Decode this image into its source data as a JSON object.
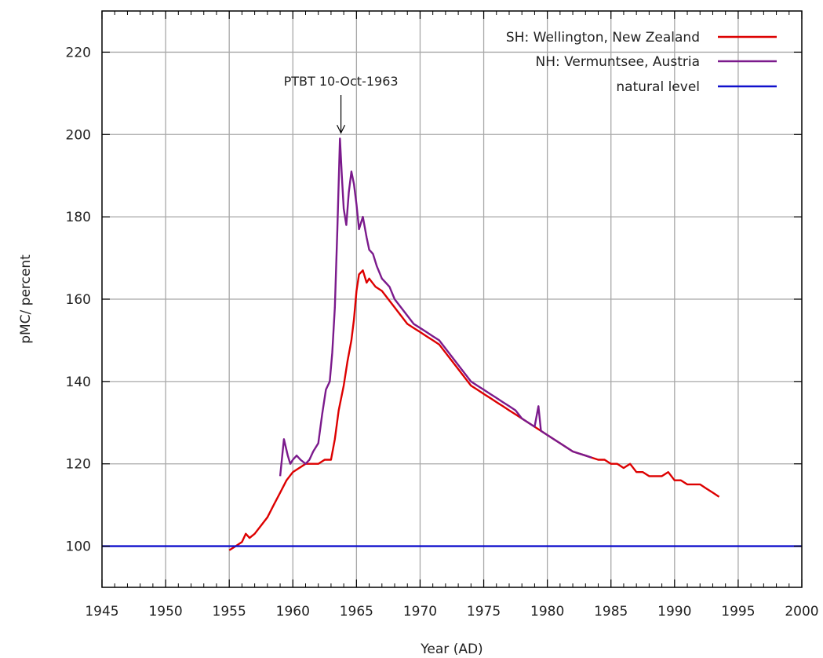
{
  "chart_data": {
    "type": "line",
    "xlabel": "Year (AD)",
    "ylabel": "pMC/ percent",
    "xlim": [
      1945,
      2000
    ],
    "ylim": [
      90,
      230
    ],
    "xticks": [
      1945,
      1950,
      1955,
      1960,
      1965,
      1970,
      1975,
      1980,
      1985,
      1990,
      1995,
      2000
    ],
    "yticks": [
      100,
      120,
      140,
      160,
      180,
      200,
      220
    ],
    "grid": true,
    "legend_position": "top-right",
    "annotation": {
      "text": "PTBT 10-Oct-1963",
      "x": 1963.78,
      "y": 200
    },
    "series": [
      {
        "name": "SH: Wellington, New Zealand",
        "color": "#dd0000",
        "points": [
          [
            1955.0,
            99
          ],
          [
            1955.5,
            100
          ],
          [
            1956.0,
            101
          ],
          [
            1956.3,
            103
          ],
          [
            1956.6,
            102
          ],
          [
            1957.0,
            103
          ],
          [
            1957.5,
            105
          ],
          [
            1958.0,
            107
          ],
          [
            1958.5,
            110
          ],
          [
            1959.0,
            113
          ],
          [
            1959.5,
            116
          ],
          [
            1960.0,
            118
          ],
          [
            1960.5,
            119
          ],
          [
            1961.0,
            120
          ],
          [
            1961.5,
            120
          ],
          [
            1962.0,
            120
          ],
          [
            1962.5,
            121
          ],
          [
            1963.0,
            121
          ],
          [
            1963.3,
            126
          ],
          [
            1963.6,
            133
          ],
          [
            1964.0,
            139
          ],
          [
            1964.3,
            145
          ],
          [
            1964.6,
            150
          ],
          [
            1964.8,
            155
          ],
          [
            1965.0,
            162
          ],
          [
            1965.2,
            166
          ],
          [
            1965.5,
            167
          ],
          [
            1965.8,
            164
          ],
          [
            1966.0,
            165
          ],
          [
            1966.5,
            163
          ],
          [
            1967.0,
            162
          ],
          [
            1967.5,
            160
          ],
          [
            1968.0,
            158
          ],
          [
            1968.5,
            156
          ],
          [
            1969.0,
            154
          ],
          [
            1969.5,
            153
          ],
          [
            1970.0,
            152
          ],
          [
            1970.5,
            151
          ],
          [
            1971.0,
            150
          ],
          [
            1971.5,
            149
          ],
          [
            1972.0,
            147
          ],
          [
            1972.5,
            145
          ],
          [
            1973.0,
            143
          ],
          [
            1973.5,
            141
          ],
          [
            1974.0,
            139
          ],
          [
            1974.5,
            138
          ],
          [
            1975.0,
            137
          ],
          [
            1975.5,
            136
          ],
          [
            1976.0,
            135
          ],
          [
            1976.5,
            134
          ],
          [
            1977.0,
            133
          ],
          [
            1977.5,
            132
          ],
          [
            1978.0,
            131
          ],
          [
            1978.5,
            130
          ],
          [
            1979.0,
            129
          ],
          [
            1979.5,
            128
          ],
          [
            1980.0,
            127
          ],
          [
            1980.5,
            126
          ],
          [
            1981.0,
            125
          ],
          [
            1981.5,
            124
          ],
          [
            1982.0,
            123
          ],
          [
            1982.5,
            122.5
          ],
          [
            1983.0,
            122
          ],
          [
            1983.5,
            121.5
          ],
          [
            1984.0,
            121
          ],
          [
            1984.5,
            121
          ],
          [
            1985.0,
            120
          ],
          [
            1985.5,
            120
          ],
          [
            1986.0,
            119
          ],
          [
            1986.5,
            120
          ],
          [
            1987.0,
            118
          ],
          [
            1987.5,
            118
          ],
          [
            1988.0,
            117
          ],
          [
            1988.5,
            117
          ],
          [
            1989.0,
            117
          ],
          [
            1989.5,
            118
          ],
          [
            1990.0,
            116
          ],
          [
            1990.5,
            116
          ],
          [
            1991.0,
            115
          ],
          [
            1991.5,
            115
          ],
          [
            1992.0,
            115
          ],
          [
            1992.5,
            114
          ],
          [
            1993.0,
            113
          ],
          [
            1993.5,
            112
          ]
        ]
      },
      {
        "name": "NH: Vermuntsee, Austria",
        "color": "#7b1a8c",
        "points": [
          [
            1959.0,
            117
          ],
          [
            1959.3,
            126
          ],
          [
            1959.6,
            122
          ],
          [
            1959.8,
            120
          ],
          [
            1960.0,
            121
          ],
          [
            1960.3,
            122
          ],
          [
            1960.6,
            121
          ],
          [
            1961.0,
            120
          ],
          [
            1961.3,
            121
          ],
          [
            1961.6,
            123
          ],
          [
            1962.0,
            125
          ],
          [
            1962.3,
            132
          ],
          [
            1962.6,
            138
          ],
          [
            1962.9,
            140
          ],
          [
            1963.1,
            147
          ],
          [
            1963.3,
            158
          ],
          [
            1963.5,
            177
          ],
          [
            1963.7,
            199
          ],
          [
            1963.85,
            190
          ],
          [
            1964.0,
            182
          ],
          [
            1964.2,
            178
          ],
          [
            1964.4,
            186
          ],
          [
            1964.6,
            191
          ],
          [
            1964.8,
            188
          ],
          [
            1965.0,
            183
          ],
          [
            1965.2,
            177
          ],
          [
            1965.5,
            180
          ],
          [
            1965.8,
            175
          ],
          [
            1966.0,
            172
          ],
          [
            1966.3,
            171
          ],
          [
            1966.6,
            168
          ],
          [
            1967.0,
            165
          ],
          [
            1967.3,
            164
          ],
          [
            1967.6,
            163
          ],
          [
            1968.0,
            160
          ],
          [
            1968.5,
            158
          ],
          [
            1969.0,
            156
          ],
          [
            1969.5,
            154
          ],
          [
            1970.0,
            153
          ],
          [
            1970.5,
            152
          ],
          [
            1971.0,
            151
          ],
          [
            1971.5,
            150
          ],
          [
            1972.0,
            148
          ],
          [
            1972.5,
            146
          ],
          [
            1973.0,
            144
          ],
          [
            1973.5,
            142
          ],
          [
            1974.0,
            140
          ],
          [
            1974.5,
            139
          ],
          [
            1975.0,
            138
          ],
          [
            1975.5,
            137
          ],
          [
            1976.0,
            136
          ],
          [
            1976.5,
            135
          ],
          [
            1977.0,
            134
          ],
          [
            1977.5,
            133
          ],
          [
            1978.0,
            131
          ],
          [
            1978.5,
            130
          ],
          [
            1979.0,
            129
          ],
          [
            1979.3,
            134
          ],
          [
            1979.5,
            128
          ],
          [
            1980.0,
            127
          ],
          [
            1980.5,
            126
          ],
          [
            1981.0,
            125
          ],
          [
            1981.5,
            124
          ],
          [
            1982.0,
            123
          ],
          [
            1982.5,
            122.5
          ],
          [
            1983.0,
            122
          ],
          [
            1983.5,
            121.5
          ]
        ]
      },
      {
        "name": "natural level",
        "color": "#1010cc",
        "points": [
          [
            1945,
            100
          ],
          [
            2000,
            100
          ]
        ]
      }
    ]
  }
}
